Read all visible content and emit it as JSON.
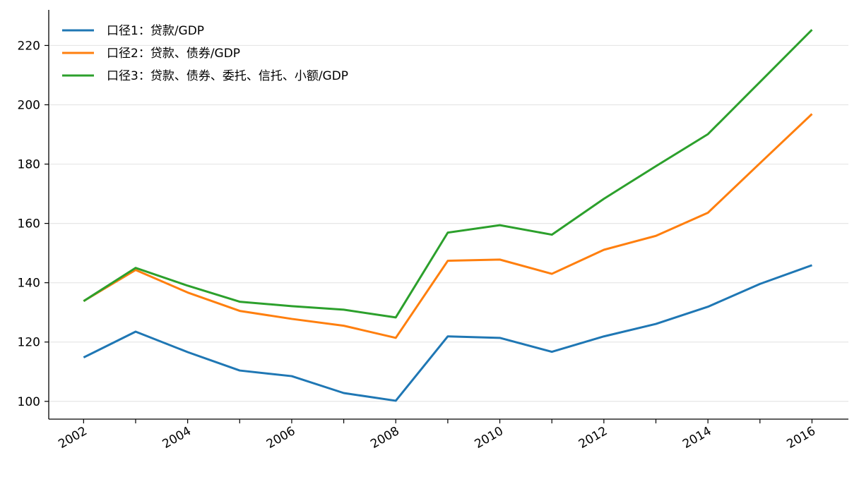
{
  "chart_data": {
    "type": "line",
    "title": "",
    "xlabel": "",
    "ylabel": "",
    "x": [
      2002,
      2003,
      2004,
      2005,
      2006,
      2007,
      2008,
      2009,
      2010,
      2011,
      2012,
      2013,
      2014,
      2015,
      2016
    ],
    "x_tick_labels": [
      "2002",
      "2004",
      "2006",
      "2008",
      "2010",
      "2012",
      "2014",
      "2016"
    ],
    "y_tick_labels": [
      "100",
      "120",
      "140",
      "160",
      "180",
      "200",
      "220"
    ],
    "xlim": [
      2001.33,
      2016.7
    ],
    "ylim": [
      94,
      232
    ],
    "grid": "horizontal",
    "legend_position": "top-left",
    "series": [
      {
        "name": "口径1：贷款/GDP",
        "color": "#1f77b4",
        "values": [
          114.8,
          123.5,
          116.6,
          110.4,
          108.5,
          102.8,
          100.2,
          121.9,
          121.4,
          116.7,
          121.9,
          126.1,
          131.9,
          139.6,
          145.9
        ]
      },
      {
        "name": "口径2：贷款、债券/GDP",
        "color": "#ff7f0e",
        "values": [
          133.8,
          144.3,
          136.7,
          130.5,
          127.8,
          125.5,
          121.4,
          147.4,
          147.8,
          143.0,
          151.1,
          155.8,
          163.6,
          180.3,
          196.9
        ]
      },
      {
        "name": "口径3：贷款、债券、委托、信托、小额/GDP",
        "color": "#2ca02c",
        "values": [
          133.8,
          145.0,
          139.0,
          133.6,
          132.1,
          130.9,
          128.3,
          156.9,
          159.4,
          156.2,
          168.3,
          179.3,
          190.1,
          207.7,
          225.3
        ]
      }
    ]
  }
}
